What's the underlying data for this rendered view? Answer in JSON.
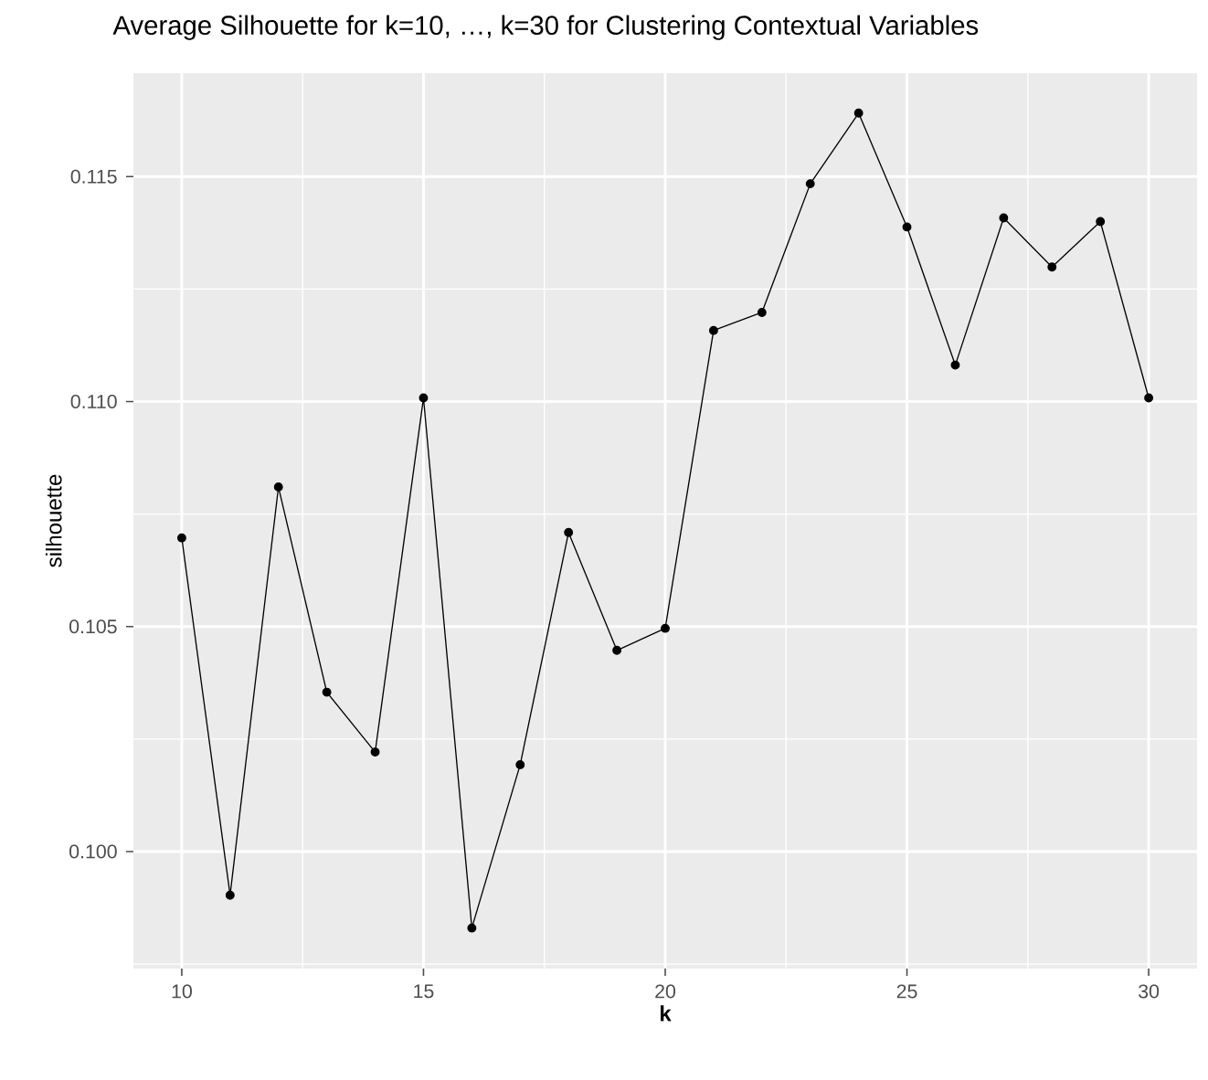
{
  "chart_data": {
    "type": "line",
    "title": "Average Silhouette for k=10, …, k=30 for Clustering Contextual Variables",
    "xlabel": "k",
    "ylabel": "silhouette",
    "x": [
      10,
      11,
      12,
      13,
      14,
      15,
      16,
      17,
      18,
      19,
      20,
      21,
      22,
      23,
      24,
      25,
      26,
      27,
      28,
      29,
      30
    ],
    "series": [
      {
        "color": "#000000",
        "values": [
          0.10697,
          0.09903,
          0.1081,
          0.10354,
          0.10221,
          0.11008,
          0.0983,
          0.10193,
          0.10709,
          0.10447,
          0.10496,
          0.11158,
          0.11198,
          0.11484,
          0.11641,
          0.11388,
          0.11081,
          0.11408,
          0.11299,
          0.114,
          0.11008
        ]
      }
    ],
    "xlim": [
      9,
      31
    ],
    "xticks": [
      10,
      15,
      20,
      25,
      30
    ],
    "ylim": [
      0.0974,
      0.1173
    ],
    "yticks": [
      {
        "value": 0.1,
        "label": "0.100"
      },
      {
        "value": 0.105,
        "label": "0.105"
      },
      {
        "value": 0.11,
        "label": "0.110"
      },
      {
        "value": 0.115,
        "label": "0.115"
      }
    ],
    "grid": true,
    "marker": "circle",
    "line_style": "solid"
  }
}
